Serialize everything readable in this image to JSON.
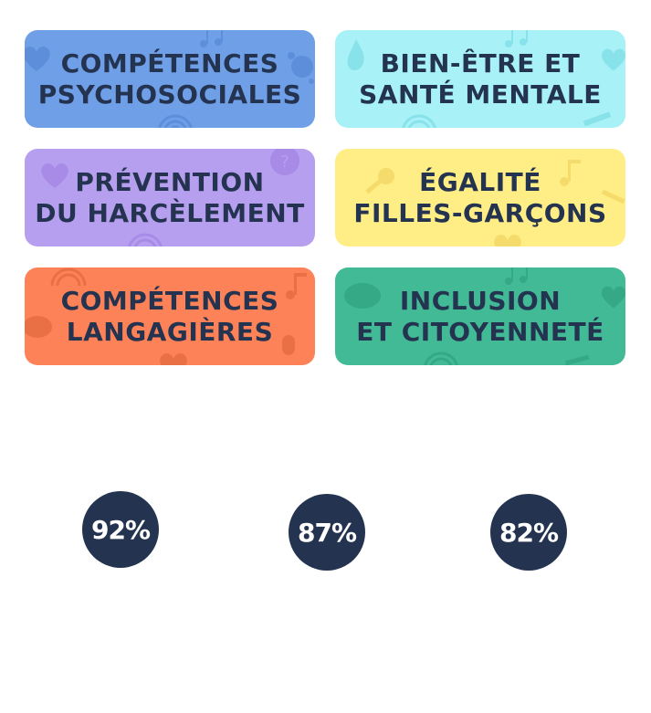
{
  "tiles": [
    {
      "label": "Compétences\npsychosociales",
      "color": "#6f9fe7"
    },
    {
      "label": "Bien-être et\nsanté mentale",
      "color": "#a7f1f7"
    },
    {
      "label": "Prévention\ndu harcèlement",
      "color": "#b79ff0"
    },
    {
      "label": "Égalité\nfilles-garçons",
      "color": "#ffee86"
    },
    {
      "label": "Compétences\nlangagières",
      "color": "#fe8257"
    },
    {
      "label": "Inclusion\net citoyenneté",
      "color": "#42ba96"
    }
  ],
  "stats": [
    {
      "value": "92%"
    },
    {
      "value": "87%"
    },
    {
      "value": "82%"
    }
  ],
  "icons": [
    "heart-icon",
    "music-note-icon",
    "splash-icon",
    "rainbow-icon",
    "question-bubble-icon",
    "microphone-icon",
    "brain-icon",
    "pencil-icon"
  ]
}
